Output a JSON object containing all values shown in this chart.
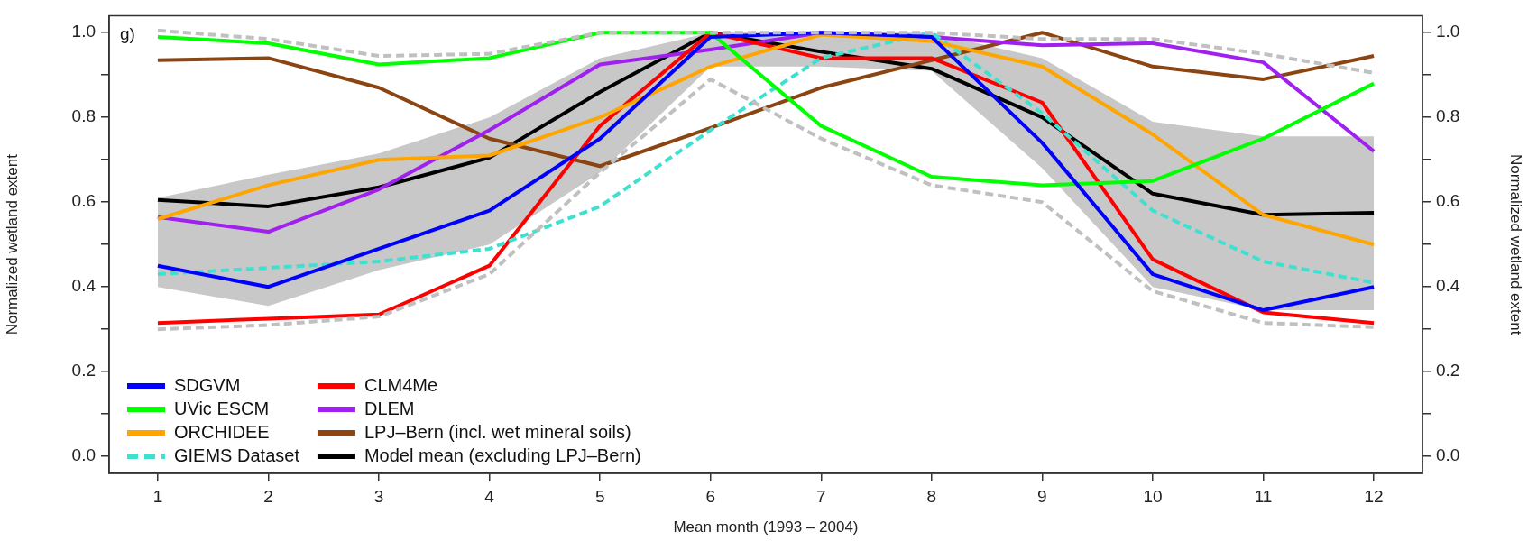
{
  "chart_data": {
    "type": "line",
    "xlabel": "Mean month (1993 – 2004)",
    "ylabel": "Normalized wetland extent",
    "y2label": "Normalized wetland extent",
    "annotations": [
      "g)"
    ],
    "x": [
      1,
      2,
      3,
      4,
      5,
      6,
      7,
      8,
      9,
      10,
      11,
      12
    ],
    "xlim": [
      0.56,
      12.44
    ],
    "xticks": [
      1,
      2,
      3,
      4,
      5,
      6,
      7,
      8,
      9,
      10,
      11,
      12
    ],
    "ylim": [
      -0.04,
      1.04
    ],
    "yticks": [
      {
        "value": 0,
        "label": "0.0"
      },
      {
        "value": 0.1,
        "label": null
      },
      {
        "value": 0.2,
        "label": "0.2"
      },
      {
        "value": 0.3,
        "label": null
      },
      {
        "value": 0.4,
        "label": "0.4"
      },
      {
        "value": 0.5,
        "label": null
      },
      {
        "value": 0.6,
        "label": "0.6"
      },
      {
        "value": 0.7,
        "label": null
      },
      {
        "value": 0.8,
        "label": "0.8"
      },
      {
        "value": 0.9,
        "label": null
      },
      {
        "value": 1,
        "label": "1.0"
      }
    ],
    "y2lim": [
      -0.04,
      1.04
    ],
    "y2ticks": [
      {
        "value": 0,
        "label": "0.0"
      },
      {
        "value": 0.1,
        "label": null
      },
      {
        "value": 0.2,
        "label": "0.2"
      },
      {
        "value": 0.3,
        "label": null
      },
      {
        "value": 0.4,
        "label": "0.4"
      },
      {
        "value": 0.5,
        "label": null
      },
      {
        "value": 0.6,
        "label": "0.6"
      },
      {
        "value": 0.7,
        "label": null
      },
      {
        "value": 0.8,
        "label": "0.8"
      },
      {
        "value": 0.9,
        "label": null
      },
      {
        "value": 1,
        "label": "1.0"
      }
    ],
    "grid": false,
    "legend": "bottom left",
    "marker": "none",
    "series": [
      {
        "color": "#c0c0c0",
        "line_style": "dashed",
        "values": [
          1.005,
          0.985,
          0.945,
          0.95,
          1.0,
          1.0,
          1.0,
          1.0,
          0.985,
          0.985,
          0.95,
          0.905
        ]
      },
      {
        "color": "#c0c0c0",
        "line_style": "dashed",
        "values": [
          0.3,
          0.31,
          0.33,
          0.43,
          0.67,
          0.89,
          0.75,
          0.64,
          0.6,
          0.39,
          0.315,
          0.305
        ]
      },
      {
        "name": "SDGVM",
        "color": "#0000ff",
        "values": [
          0.45,
          0.4,
          0.49,
          0.58,
          0.75,
          0.99,
          1.0,
          0.99,
          0.74,
          0.43,
          0.345,
          0.4
        ]
      },
      {
        "name": "UVic ESCM",
        "color": "#00ff00",
        "values": [
          0.99,
          0.975,
          0.925,
          0.94,
          1.0,
          1.0,
          0.78,
          0.66,
          0.64,
          0.65,
          0.75,
          0.88
        ]
      },
      {
        "name": "ORCHIDEE",
        "color": "#ffa500",
        "values": [
          0.56,
          0.64,
          0.7,
          0.71,
          0.8,
          0.92,
          0.995,
          0.98,
          0.92,
          0.76,
          0.57,
          0.5
        ]
      },
      {
        "name": "GIEMS Dataset",
        "color": "#40e0d0",
        "line_style": "dashed",
        "values": [
          0.43,
          0.445,
          0.46,
          0.49,
          0.59,
          0.77,
          0.94,
          1.0,
          0.81,
          0.58,
          0.46,
          0.41
        ]
      },
      {
        "name": "CLM4Me",
        "color": "#ff0000",
        "values": [
          0.315,
          0.325,
          0.335,
          0.45,
          0.78,
          1.0,
          0.94,
          0.94,
          0.835,
          0.465,
          0.34,
          0.315
        ]
      },
      {
        "name": "DLEM",
        "color": "#a020f0",
        "values": [
          0.565,
          0.53,
          0.63,
          0.77,
          0.925,
          0.96,
          1.0,
          0.99,
          0.97,
          0.975,
          0.93,
          0.72
        ]
      },
      {
        "name": "LPJ–Bern (incl. wet mineral soils)",
        "color": "#8b4513",
        "values": [
          0.935,
          0.94,
          0.87,
          0.75,
          0.685,
          0.775,
          0.87,
          0.935,
          1.0,
          0.92,
          0.89,
          0.945
        ]
      },
      {
        "name": "Model mean (excluding LPJ–Bern)",
        "color": "#000000",
        "values": [
          0.605,
          0.59,
          0.635,
          0.705,
          0.86,
          1.0,
          0.955,
          0.915,
          0.8,
          0.62,
          0.57,
          0.575
        ],
        "lower": [
          0.4,
          0.355,
          0.44,
          0.5,
          0.67,
          0.92,
          0.92,
          0.91,
          0.68,
          0.4,
          0.345,
          0.345
        ],
        "upper": [
          0.61,
          0.665,
          0.715,
          0.8,
          0.94,
          1.0,
          1.0,
          1.0,
          0.94,
          0.79,
          0.755,
          0.755
        ]
      }
    ]
  }
}
